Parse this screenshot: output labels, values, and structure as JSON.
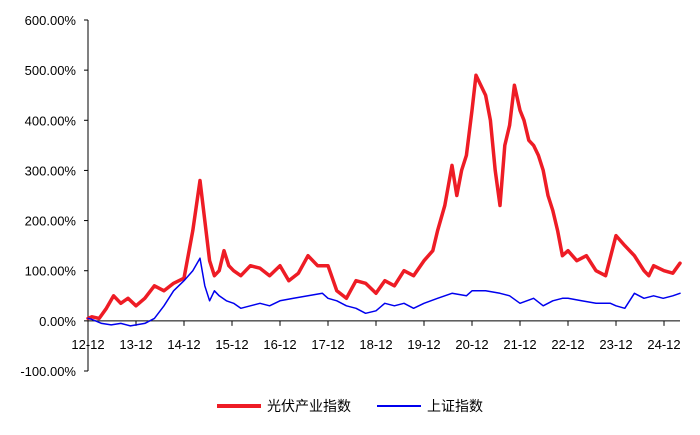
{
  "chart_data": {
    "type": "line",
    "ylim": [
      -100,
      600
    ],
    "yticks": [
      -100,
      0,
      100,
      200,
      300,
      400,
      500,
      600
    ],
    "ytick_labels": [
      "-100.00%",
      "0.00%",
      "100.00%",
      "200.00%",
      "300.00%",
      "400.00%",
      "500.00%",
      "600.00%"
    ],
    "xlim": [
      2012.917,
      2025.25
    ],
    "xticks": [
      2012.917,
      2013.917,
      2014.917,
      2015.917,
      2016.917,
      2017.917,
      2018.917,
      2019.917,
      2020.917,
      2021.917,
      2022.917,
      2023.917,
      2024.917
    ],
    "xtick_labels": [
      "12-12",
      "13-12",
      "14-12",
      "15-12",
      "16-12",
      "17-12",
      "18-12",
      "19-12",
      "20-12",
      "21-12",
      "22-12",
      "23-12",
      "24-12"
    ],
    "legend_position": "bottom",
    "series": [
      {
        "name": "光伏产业指数",
        "color": "#ee1c25",
        "x": [
          2012.917,
          2013.0,
          2013.15,
          2013.3,
          2013.45,
          2013.6,
          2013.75,
          2013.917,
          2014.1,
          2014.3,
          2014.5,
          2014.7,
          2014.917,
          2015.1,
          2015.25,
          2015.35,
          2015.45,
          2015.55,
          2015.65,
          2015.75,
          2015.85,
          2015.95,
          2016.1,
          2016.3,
          2016.5,
          2016.7,
          2016.917,
          2017.1,
          2017.3,
          2017.5,
          2017.7,
          2017.917,
          2018.1,
          2018.3,
          2018.5,
          2018.7,
          2018.917,
          2019.1,
          2019.3,
          2019.5,
          2019.7,
          2019.917,
          2020.1,
          2020.2,
          2020.35,
          2020.5,
          2020.6,
          2020.7,
          2020.8,
          2020.917,
          2021.0,
          2021.1,
          2021.2,
          2021.3,
          2021.4,
          2021.5,
          2021.6,
          2021.7,
          2021.8,
          2021.917,
          2022.0,
          2022.1,
          2022.2,
          2022.3,
          2022.4,
          2022.5,
          2022.6,
          2022.7,
          2022.8,
          2022.917,
          2023.1,
          2023.3,
          2023.5,
          2023.7,
          2023.917,
          2024.1,
          2024.3,
          2024.5,
          2024.6,
          2024.7,
          2024.917,
          2025.1,
          2025.25
        ],
        "values": [
          5,
          8,
          5,
          25,
          50,
          35,
          45,
          30,
          45,
          70,
          60,
          75,
          85,
          180,
          280,
          200,
          120,
          90,
          100,
          140,
          110,
          100,
          90,
          110,
          105,
          90,
          110,
          80,
          95,
          130,
          110,
          110,
          60,
          45,
          80,
          75,
          55,
          80,
          70,
          100,
          90,
          120,
          140,
          180,
          230,
          310,
          250,
          300,
          330,
          420,
          490,
          470,
          450,
          400,
          300,
          230,
          350,
          390,
          470,
          420,
          400,
          360,
          350,
          330,
          300,
          250,
          220,
          180,
          130,
          140,
          120,
          130,
          100,
          90,
          170,
          150,
          130,
          100,
          90,
          110,
          100,
          95,
          115
        ]
      },
      {
        "name": "上证指数",
        "color": "#0000ee",
        "x": [
          2012.917,
          2013.0,
          2013.2,
          2013.4,
          2013.6,
          2013.8,
          2013.917,
          2014.1,
          2014.3,
          2014.5,
          2014.7,
          2014.917,
          2015.1,
          2015.25,
          2015.35,
          2015.45,
          2015.55,
          2015.65,
          2015.8,
          2015.95,
          2016.1,
          2016.3,
          2016.5,
          2016.7,
          2016.917,
          2017.2,
          2017.5,
          2017.8,
          2017.917,
          2018.1,
          2018.3,
          2018.5,
          2018.7,
          2018.917,
          2019.1,
          2019.3,
          2019.5,
          2019.7,
          2019.917,
          2020.2,
          2020.5,
          2020.8,
          2020.917,
          2021.2,
          2021.5,
          2021.7,
          2021.917,
          2022.2,
          2022.4,
          2022.6,
          2022.8,
          2022.917,
          2023.2,
          2023.5,
          2023.8,
          2023.917,
          2024.1,
          2024.3,
          2024.5,
          2024.7,
          2024.9,
          2025.1,
          2025.25
        ],
        "values": [
          5,
          3,
          -5,
          -8,
          -5,
          -10,
          -8,
          -5,
          5,
          30,
          60,
          80,
          100,
          125,
          70,
          40,
          60,
          50,
          40,
          35,
          25,
          30,
          35,
          30,
          40,
          45,
          50,
          55,
          45,
          40,
          30,
          25,
          15,
          20,
          35,
          30,
          35,
          25,
          35,
          45,
          55,
          50,
          60,
          60,
          55,
          50,
          35,
          45,
          30,
          40,
          45,
          45,
          40,
          35,
          35,
          30,
          25,
          55,
          45,
          50,
          45,
          50,
          55
        ]
      }
    ]
  }
}
